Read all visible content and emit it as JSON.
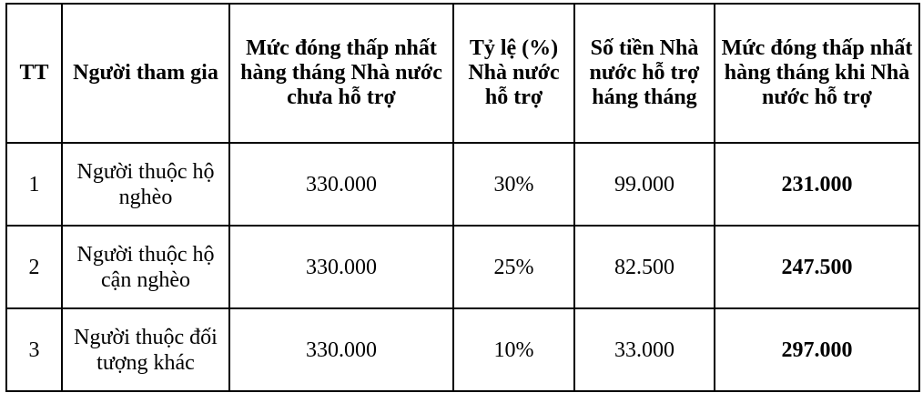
{
  "table": {
    "headers": [
      "TT",
      "Người tham gia",
      "Mức đóng thấp nhất hàng tháng Nhà nước chưa hỗ trợ",
      "Tỷ lệ (%) Nhà nước hỗ trợ",
      "Số tiền Nhà nước hỗ trợ háng tháng",
      "Mức đóng thấp nhất hàng tháng khi Nhà nước hỗ trợ"
    ],
    "rows": [
      [
        "1",
        "Người thuộc hộ nghèo",
        "330.000",
        "30%",
        "99.000",
        "231.000"
      ],
      [
        "2",
        "Người thuộc hộ cận nghèo",
        "330.000",
        "25%",
        "82.500",
        "247.500"
      ],
      [
        "3",
        "Người thuộc đối tượng khác",
        "330.000",
        "10%",
        "33.000",
        "297.000"
      ]
    ]
  }
}
